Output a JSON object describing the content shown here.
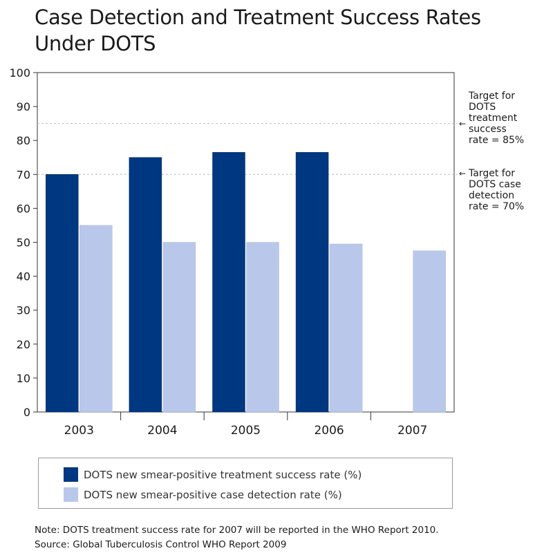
{
  "title": {
    "line1": "Case Detection and Treatment  Success Rates",
    "line2": "Under DOTS"
  },
  "colors": {
    "treatment": "#003781",
    "detection": "#b9c8ea",
    "grid": "#bdbdbd",
    "axis": "#333333"
  },
  "annotations": {
    "treatment_target": [
      "Target for",
      "DOTS",
      "treatment",
      "success",
      "rate = 85%"
    ],
    "detection_target": [
      "Target for",
      "DOTS case",
      "detection",
      "rate = 70%"
    ],
    "arrow_glyph": "←"
  },
  "legend": {
    "treatment_label": "DOTS new smear-positive treatment success rate (%)",
    "detection_label": "DOTS new smear-positive case detection rate (%)"
  },
  "notes": {
    "note": "Note: DOTS treatment success rate for 2007 will be reported in the WHO Report 2010.",
    "source": "Source: Global Tuberculosis Control  WHO Report 2009"
  },
  "chart_data": {
    "type": "bar",
    "title": "Case Detection and Treatment  Success Rates Under DOTS",
    "xlabel": "",
    "ylabel": "",
    "ylim": [
      0,
      100
    ],
    "yticks": [
      0,
      10,
      20,
      30,
      40,
      50,
      60,
      70,
      80,
      90,
      100
    ],
    "categories": [
      "2003",
      "2004",
      "2005",
      "2006",
      "2007"
    ],
    "series": [
      {
        "name": "DOTS new smear-positive treatment success rate (%)",
        "color": "#003781",
        "values": [
          70,
          75,
          76.5,
          76.5,
          null
        ]
      },
      {
        "name": "DOTS new smear-positive case detection rate (%)",
        "color": "#b9c8ea",
        "values": [
          55,
          50,
          50,
          49.5,
          47.5
        ]
      }
    ],
    "reference_lines": [
      {
        "value": 85,
        "label": "Target for DOTS treatment success rate = 85%"
      },
      {
        "value": 70,
        "label": "Target for DOTS case detection rate = 70%"
      }
    ],
    "grid": false,
    "legend_position": "bottom"
  }
}
